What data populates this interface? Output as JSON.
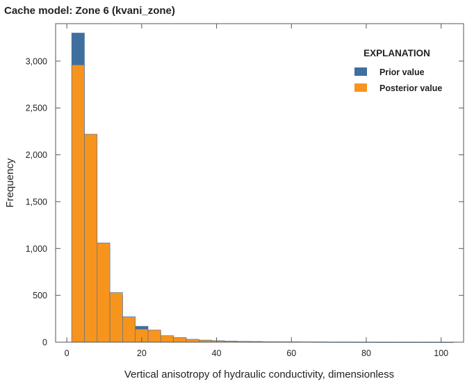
{
  "chart_data": {
    "type": "bar",
    "title": "Cache model: Zone 6 (kvani_zone)",
    "xlabel": "Vertical anisotropy of hydraulic conductivity, dimensionless",
    "ylabel": "Frequency",
    "xlim": [
      -3,
      106
    ],
    "ylim": [
      0,
      3400
    ],
    "xticks": [
      0,
      20,
      40,
      60,
      80,
      100
    ],
    "xtick_labels": [
      "0",
      "20",
      "40",
      "60",
      "80",
      "100"
    ],
    "yticks": [
      0,
      500,
      1000,
      1500,
      2000,
      2500,
      3000
    ],
    "ytick_labels": [
      "0",
      "500",
      "1,000",
      "1,500",
      "2,000",
      "2,500",
      "3,000"
    ],
    "bin_edges": [
      1.3,
      4.7,
      8.1,
      11.5,
      14.9,
      18.3,
      21.7,
      25.1,
      28.5,
      31.9,
      35.3,
      38.7,
      42.1,
      45.5,
      48.9,
      52.3,
      55.7,
      59.1,
      62.5,
      65.9,
      69.3,
      72.7,
      76.1,
      79.5,
      82.9,
      86.3,
      89.7,
      93.1,
      96.5,
      99.9,
      103.3
    ],
    "legend_title": "EXPLANATION",
    "legend_position": "top-right",
    "grid": false,
    "series": [
      {
        "name": "Prior value",
        "color": "#3f6f9f",
        "values": [
          3300,
          1950,
          1000,
          490,
          270,
          170,
          110,
          65,
          42,
          30,
          22,
          16,
          11,
          9,
          7,
          5,
          4,
          4,
          3,
          3,
          2,
          2,
          2,
          2,
          1,
          1,
          1,
          1,
          1,
          1
        ]
      },
      {
        "name": "Posterior value",
        "color": "#f7941d",
        "values": [
          2960,
          2220,
          1060,
          530,
          270,
          140,
          130,
          70,
          50,
          30,
          20,
          15,
          10,
          8,
          6,
          5,
          4,
          3,
          3,
          2,
          2,
          2,
          1,
          1,
          1,
          1,
          1,
          1,
          1,
          1
        ]
      }
    ]
  }
}
